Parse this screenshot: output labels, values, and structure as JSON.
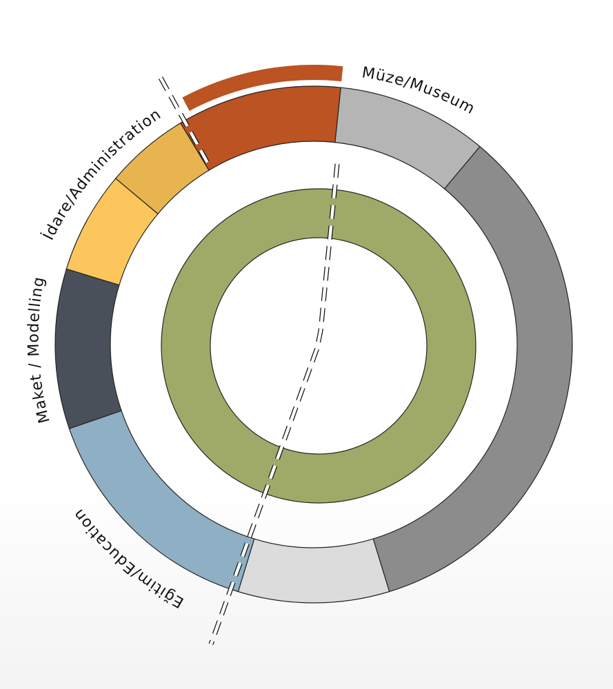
{
  "labels": {
    "museum": "Müze/Museum",
    "administration": "İdare/Administration",
    "modelling": "Maket / Modelling",
    "education": "Eğitim/Education"
  },
  "colors": {
    "museum_light": "#b5b5b5",
    "museum_dark": "#8c8c8c",
    "museum_pale": "#dcdcdc",
    "education": "#8fafc4",
    "modelling": "#4a505a",
    "admin_light": "#fdc65c",
    "admin_mid": "#e8b450",
    "orange": "#bb5322",
    "core": "#a0aa68",
    "stroke": "#222222"
  }
}
